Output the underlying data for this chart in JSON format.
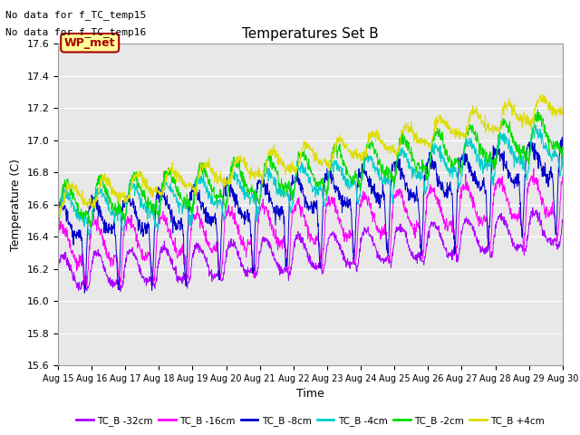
{
  "title": "Temperatures Set B",
  "xlabel": "Time",
  "ylabel": "Temperature (C)",
  "ylim": [
    15.6,
    17.6
  ],
  "yticks": [
    15.6,
    15.8,
    16.0,
    16.2,
    16.4,
    16.6,
    16.8,
    17.0,
    17.2,
    17.4,
    17.6
  ],
  "n_points": 1500,
  "annotations": [
    "No data for f_TC_temp15",
    "No data for f_TC_temp16"
  ],
  "wp_met_label": "WP_met",
  "series": [
    {
      "label": "TC_B -32cm",
      "color": "#aa00ff",
      "base": 16.18,
      "amp": 0.1,
      "trend": 0.22,
      "dip_amp": 0.12,
      "dip_sharp": 6,
      "phase_dip": 0.1,
      "noise": 0.015
    },
    {
      "label": "TC_B -16cm",
      "color": "#ff00ff",
      "base": 16.35,
      "amp": 0.12,
      "trend": 0.25,
      "dip_amp": 0.28,
      "dip_sharp": 8,
      "phase_dip": 0.15,
      "noise": 0.02
    },
    {
      "label": "TC_B -8cm",
      "color": "#0000cc",
      "base": 16.5,
      "amp": 0.1,
      "trend": 0.3,
      "dip_amp": 0.45,
      "dip_sharp": 10,
      "phase_dip": 0.2,
      "noise": 0.025
    },
    {
      "label": "TC_B -4cm",
      "color": "#00cccc",
      "base": 16.58,
      "amp": 0.08,
      "trend": 0.32,
      "dip_amp": 0.18,
      "dip_sharp": 6,
      "phase_dip": 0.05,
      "noise": 0.02
    },
    {
      "label": "TC_B -2cm",
      "color": "#00dd00",
      "base": 16.62,
      "amp": 0.1,
      "trend": 0.35,
      "dip_amp": 0.15,
      "dip_sharp": 5,
      "phase_dip": 0.0,
      "noise": 0.02
    },
    {
      "label": "TC_B +4cm",
      "color": "#dddd00",
      "base": 16.65,
      "amp": 0.06,
      "trend": 0.45,
      "dip_amp": 0.08,
      "dip_sharp": 4,
      "phase_dip": -0.1,
      "noise": 0.018
    }
  ],
  "background_color": "#ffffff",
  "plot_bg": "#e8e8e8",
  "grid_color": "#ffffff",
  "annotation_color": "#000000",
  "wp_met_bg": "#ffff99",
  "wp_met_border": "#aa0000",
  "wp_met_text": "#aa0000"
}
